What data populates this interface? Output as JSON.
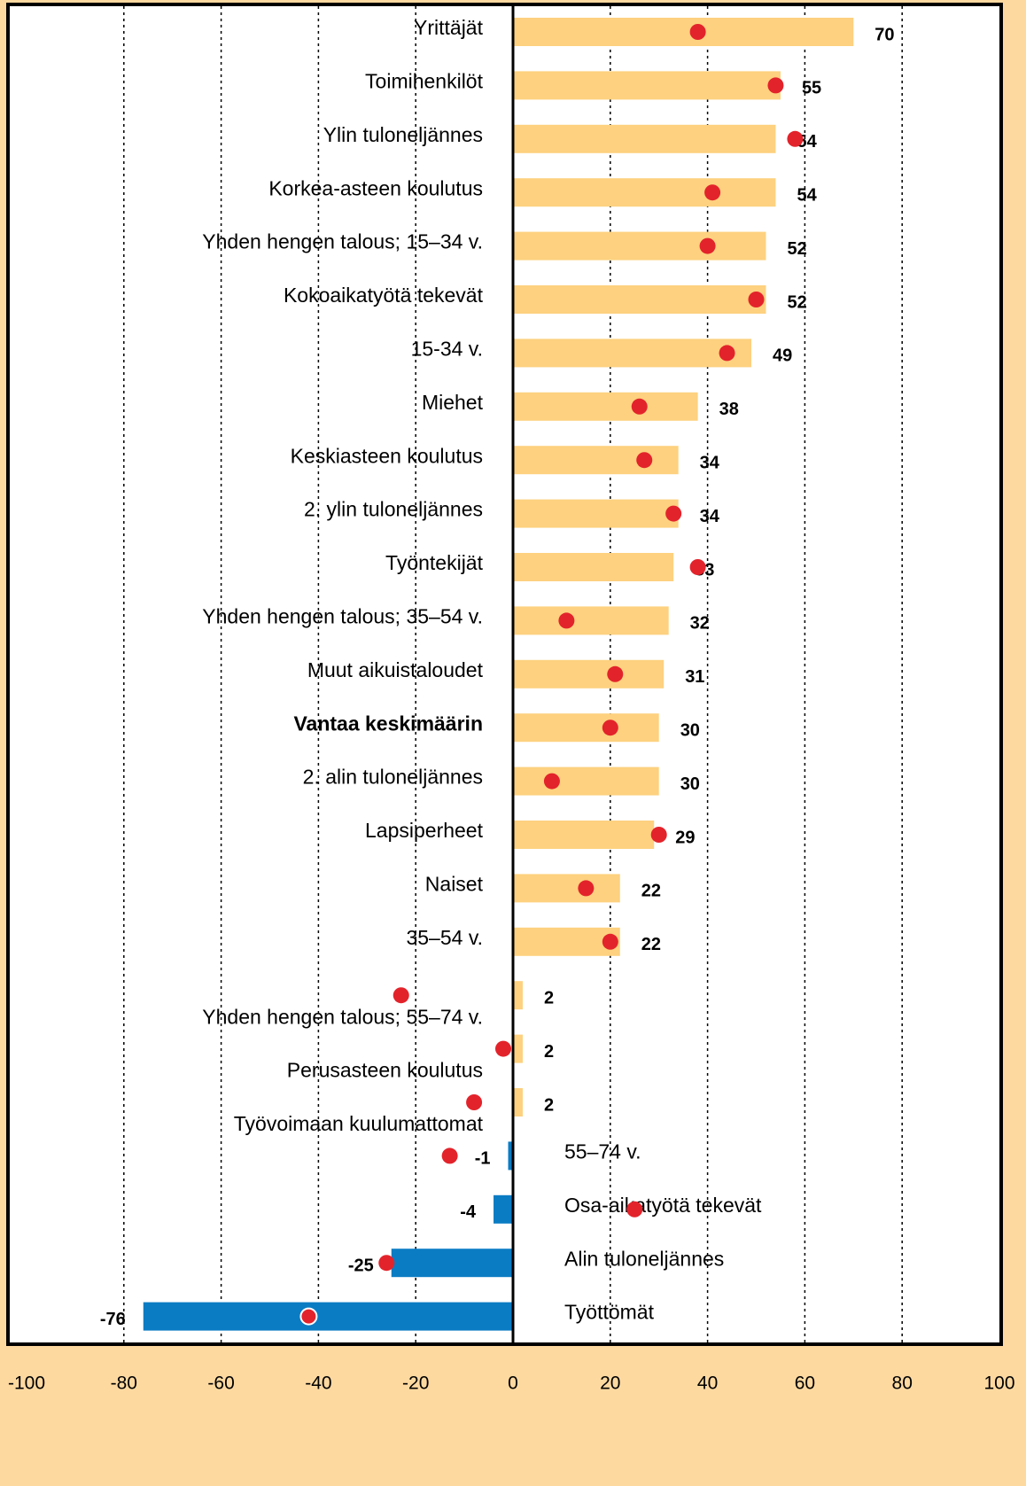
{
  "chart_data": {
    "type": "bar",
    "categories": [
      "Yrittäjät",
      "Toimihenkilöt",
      "Ylin tuloneljännes",
      "Korkea-asteen koulutus",
      "Yhden hengen talous; 15–34 v.",
      "Kokoaikatyötä tekevät",
      "15-34 v.",
      "Miehet",
      "Keskiasteen koulutus",
      "2. ylin tuloneljännes",
      "Työntekijät",
      "Yhden hengen talous; 35–54 v.",
      "Muut aikuistaloudet",
      "Vantaa keskimäärin",
      "2. alin tuloneljännes",
      "Lapsiperheet",
      "Naiset",
      "35–54 v.",
      "Yhden hengen talous; 55–74 v.",
      "Perusasteen koulutus",
      "Työvoimaan kuulumattomat",
      "55–74 v.",
      "Osa-aikatyötä tekevät",
      "Alin tuloneljännes",
      "Työttömät"
    ],
    "values": [
      70,
      55,
      54,
      54,
      52,
      52,
      49,
      38,
      34,
      34,
      33,
      32,
      31,
      30,
      30,
      29,
      22,
      22,
      2,
      2,
      2,
      -1,
      -4,
      -25,
      -76
    ],
    "color_positive": "#fdd17f",
    "color_negative": "#0a7cc4",
    "markers": {
      "values": [
        38,
        54,
        58,
        41,
        40,
        50,
        44,
        26,
        27,
        33,
        38,
        11,
        21,
        20,
        8,
        30,
        15,
        20,
        -23,
        -2,
        -8,
        -13,
        25,
        -26,
        -42
      ],
      "color": "#e3232b"
    },
    "bold_index": 13,
    "xlim": [
      -100,
      100
    ],
    "xticks": [
      -100,
      -80,
      -60,
      -40,
      -20,
      0,
      20,
      40,
      60,
      80,
      100
    ],
    "grid": true
  }
}
